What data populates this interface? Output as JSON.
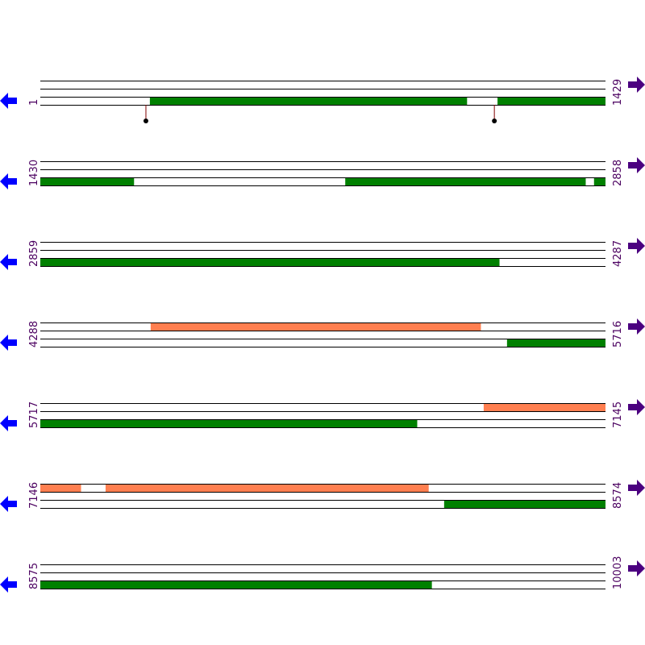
{
  "rows": [
    {
      "start": 1,
      "end": 1429,
      "features": [
        {
          "track": 2,
          "from": 278,
          "to": 1079,
          "color": "#008000"
        },
        {
          "track": 2,
          "from": 1157,
          "to": 1429,
          "color": "#008000"
        }
      ],
      "markers": [
        268,
        1149
      ]
    },
    {
      "start": 1430,
      "end": 2858,
      "features": [
        {
          "track": 2,
          "from": 1430,
          "to": 1666,
          "color": "#008000"
        },
        {
          "track": 2,
          "from": 2201,
          "to": 2808,
          "color": "#008000"
        },
        {
          "track": 2,
          "from": 2830,
          "to": 2858,
          "color": "#008000"
        }
      ]
    },
    {
      "start": 2859,
      "end": 4287,
      "features": [
        {
          "track": 2,
          "from": 2859,
          "to": 4019,
          "color": "#008000"
        }
      ]
    },
    {
      "start": 4288,
      "end": 5716,
      "features": [
        {
          "track": 0,
          "from": 4567,
          "to": 5401,
          "color": "#ff7f50"
        },
        {
          "track": 2,
          "from": 5468,
          "to": 5716,
          "color": "#008000"
        }
      ]
    },
    {
      "start": 5717,
      "end": 7145,
      "features": [
        {
          "track": 0,
          "from": 6838,
          "to": 7145,
          "color": "#ff7f50"
        },
        {
          "track": 2,
          "from": 5717,
          "to": 6669,
          "color": "#008000"
        }
      ]
    },
    {
      "start": 7146,
      "end": 8574,
      "features": [
        {
          "track": 0,
          "from": 7146,
          "to": 7248,
          "color": "#ff7f50"
        },
        {
          "track": 0,
          "from": 7311,
          "to": 8127,
          "color": "#ff7f50"
        },
        {
          "track": 2,
          "from": 8167,
          "to": 8574,
          "color": "#008000"
        }
      ]
    },
    {
      "start": 8575,
      "end": 10003,
      "features": [
        {
          "track": 2,
          "from": 8575,
          "to": 9564,
          "color": "#008000"
        }
      ]
    }
  ]
}
